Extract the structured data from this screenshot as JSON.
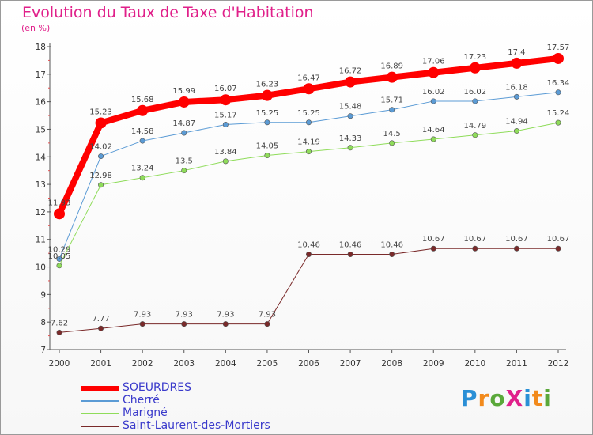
{
  "title": "Evolution du Taux de Taxe d'Habitation",
  "unit": "(en %)",
  "logo": {
    "text": "ProXiti",
    "letter_colors": [
      "#2a8fd6",
      "#f28a1c",
      "#5aa83a",
      "#e0208a",
      "#2a8fd6",
      "#f28a1c",
      "#5aa83a"
    ]
  },
  "chart_data": {
    "type": "line",
    "title": "Evolution du Taux de Taxe d'Habitation",
    "ylabel": "(en %)",
    "xlabel": "",
    "x": [
      "2000",
      "2001",
      "2002",
      "2003",
      "2004",
      "2005",
      "2006",
      "2007",
      "2008",
      "2009",
      "2010",
      "2011",
      "2012"
    ],
    "ylim": [
      7,
      18
    ],
    "yticks": [
      "7",
      "8",
      "9",
      "10",
      "11",
      "12",
      "13",
      "14",
      "15",
      "16",
      "17",
      "18"
    ],
    "grid": false,
    "legend_position": "bottom-left",
    "series": [
      {
        "name": "SOEURDRES",
        "color": "#ff0000",
        "thick": true,
        "values": [
          11.93,
          15.23,
          15.68,
          15.99,
          16.07,
          16.23,
          16.47,
          16.72,
          16.89,
          17.06,
          17.23,
          17.4,
          17.57
        ],
        "labels": [
          "11.93",
          "15.23",
          "15.68",
          "15.99",
          "16.07",
          "16.23",
          "16.47",
          "16.72",
          "16.89",
          "17.06",
          "17.23",
          "17.4",
          "17.57"
        ]
      },
      {
        "name": "Cherré",
        "color": "#5b9bd5",
        "thick": false,
        "values": [
          10.29,
          14.02,
          14.58,
          14.87,
          15.17,
          15.25,
          15.25,
          15.48,
          15.71,
          16.02,
          16.02,
          16.18,
          16.34
        ],
        "labels": [
          "10.29",
          "14.02",
          "14.58",
          "14.87",
          "15.17",
          "15.25",
          "15.25",
          "15.48",
          "15.71",
          "16.02",
          "16.02",
          "16.18",
          "16.34"
        ]
      },
      {
        "name": "Marigné",
        "color": "#8fdc5a",
        "thick": false,
        "values": [
          10.05,
          12.98,
          13.24,
          13.5,
          13.84,
          14.05,
          14.19,
          14.33,
          14.5,
          14.64,
          14.79,
          14.94,
          15.24
        ],
        "labels": [
          "10.05",
          "12.98",
          "13.24",
          "13.5",
          "13.84",
          "14.05",
          "14.19",
          "14.33",
          "14.5",
          "14.64",
          "14.79",
          "14.94",
          "15.24"
        ]
      },
      {
        "name": "Saint-Laurent-des-Mortiers",
        "color": "#7a2a2a",
        "thick": false,
        "values": [
          7.62,
          7.77,
          7.93,
          7.93,
          7.93,
          7.93,
          10.46,
          10.46,
          10.46,
          10.67,
          10.67,
          10.67,
          10.67
        ],
        "labels": [
          "7.62",
          "7.77",
          "7.93",
          "7.93",
          "7.93",
          "7.93",
          "10.46",
          "10.46",
          "10.46",
          "10.67",
          "10.67",
          "10.67",
          "10.67"
        ]
      }
    ]
  }
}
